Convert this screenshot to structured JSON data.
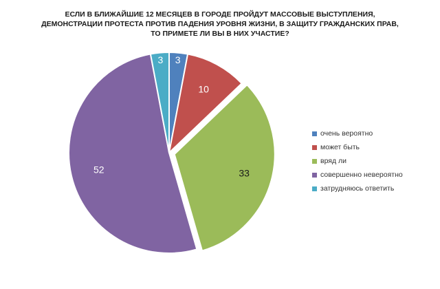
{
  "chart_data": {
    "type": "pie",
    "title_lines": [
      "ЕСЛИ В БЛИЖАЙШИЕ 12 МЕСЯЦЕВ В ГОРОДЕ ПРОЙДУТ МАССОВЫЕ ВЫСТУПЛЕНИЯ,",
      "ДЕМОНСТРАЦИИ ПРОТЕСТА ПРОТИВ ПАДЕНИЯ УРОВНЯ ЖИЗНИ, В ЗАЩИТУ ГРАЖДАНСКИХ ПРАВ,",
      "ТО ПРИМЕТЕ ЛИ ВЫ В НИХ УЧАСТИЕ?"
    ],
    "categories": [
      "очень вероятно",
      "может быть",
      "вряд ли",
      "совершенно невероятно",
      "затрудняюсь ответить"
    ],
    "values": [
      3,
      10,
      33,
      52,
      3
    ],
    "data_labels": [
      "3",
      "10",
      "33",
      "52",
      "3"
    ],
    "colors": [
      "#4F81BD",
      "#C0504D",
      "#9BBB59",
      "#8064A2",
      "#4BACC6"
    ],
    "exploded_slices": [
      "вряд ли"
    ],
    "legend_position": "right",
    "start_angle": "12 o'clock, clockwise"
  }
}
